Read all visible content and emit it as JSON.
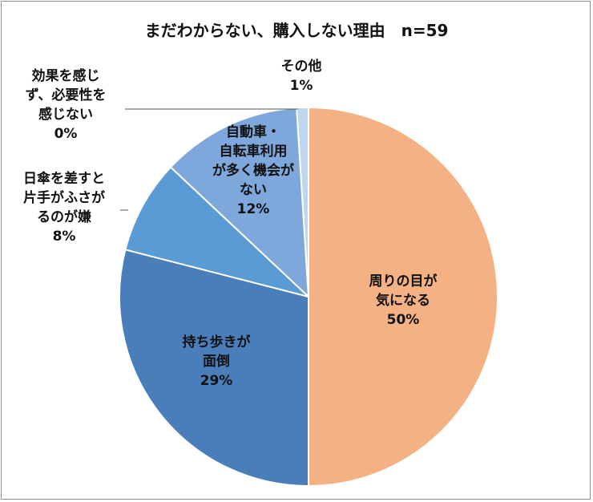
{
  "chart_data": {
    "type": "pie",
    "title": "まだわからない、購入しない理由　n=59",
    "slices": [
      {
        "label_lines": [
          "周りの目が",
          "気になる"
        ],
        "value": 50,
        "value_label": "50%",
        "color": "#F4B183"
      },
      {
        "label_lines": [
          "持ち歩きが",
          "面倒"
        ],
        "value": 29,
        "value_label": "29%",
        "color": "#4A7EBB"
      },
      {
        "label_lines": [
          "日傘を差すと",
          "片手がふさが",
          "るのが嫌"
        ],
        "value": 8,
        "value_label": "8%",
        "color": "#5B9BD5"
      },
      {
        "label_lines": [
          "自動車・",
          "自転車利用",
          "が多く機会が",
          "ない"
        ],
        "value": 12,
        "value_label": "12%",
        "color": "#7EA7DC"
      },
      {
        "label_lines": [
          "効果を感じ",
          "ず、必要性を",
          "感じない"
        ],
        "value": 0,
        "value_label": "0%",
        "color": "#9DC3E6"
      },
      {
        "label_lines": [
          "その他"
        ],
        "value": 1,
        "value_label": "1%",
        "color": "#BDD7EE"
      }
    ]
  }
}
